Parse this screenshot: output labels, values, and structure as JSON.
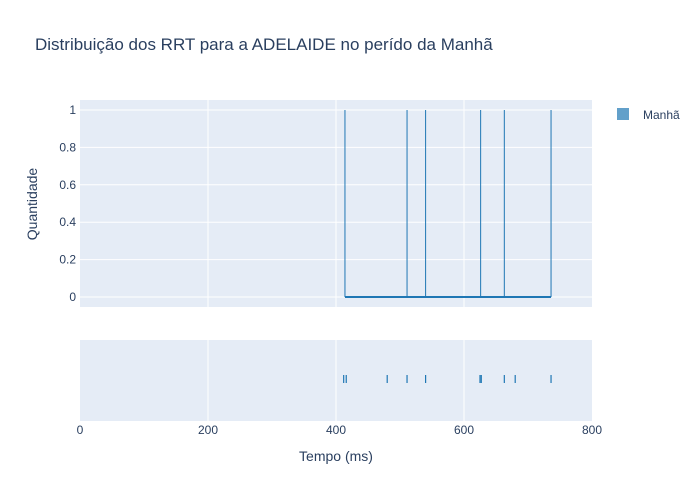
{
  "chart_data": {
    "type": "histogram",
    "title": "Distribuição dos RRT para a ADELAIDE no perído da Manhã",
    "xlabel": "Tempo (ms)",
    "ylabel": "Quantidade",
    "xlim": [
      0,
      800
    ],
    "ylim": [
      0,
      1
    ],
    "x_ticks": [
      "0",
      "200",
      "400",
      "600",
      "800"
    ],
    "y_ticks": [
      "0",
      "0.2",
      "0.4",
      "0.6",
      "0.8",
      "1"
    ],
    "grid": true,
    "legend_position": "top-right",
    "series": [
      {
        "name": "Manhã",
        "color": "#1f77b4",
        "histogram_spikes_x": [
          414,
          511,
          540,
          626,
          663,
          736
        ],
        "histogram_spikes_y": [
          1,
          1,
          1,
          1,
          1,
          1
        ],
        "rug_x": [
          412,
          416,
          480,
          511,
          540,
          625,
          627,
          663,
          680,
          736
        ]
      }
    ]
  }
}
